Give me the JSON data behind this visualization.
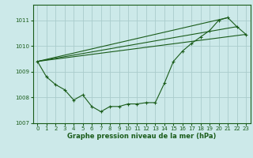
{
  "title": "Graphe pression niveau de la mer (hPa)",
  "background_color": "#cce9e9",
  "line_color": "#1a5c1a",
  "grid_color": "#aacccc",
  "xlim": [
    -0.5,
    23.5
  ],
  "ylim": [
    1007.0,
    1011.6
  ],
  "yticks": [
    1007,
    1008,
    1009,
    1010,
    1011
  ],
  "xticks": [
    0,
    1,
    2,
    3,
    4,
    5,
    6,
    7,
    8,
    9,
    10,
    11,
    12,
    13,
    14,
    15,
    16,
    17,
    18,
    19,
    20,
    21,
    22,
    23
  ],
  "hours": [
    0,
    1,
    2,
    3,
    4,
    5,
    6,
    7,
    8,
    9,
    10,
    11,
    12,
    13,
    14,
    15,
    16,
    17,
    18,
    19,
    20,
    21,
    22,
    23
  ],
  "pressure": [
    1009.4,
    1008.8,
    1008.5,
    1008.3,
    1007.9,
    1008.1,
    1007.65,
    1007.45,
    1007.65,
    1007.65,
    1007.75,
    1007.75,
    1007.8,
    1007.8,
    1008.55,
    1009.4,
    1009.8,
    1010.1,
    1010.35,
    1010.6,
    1011.0,
    1011.1,
    1010.75,
    1010.45
  ],
  "line1_x": [
    0,
    21
  ],
  "line1_y": [
    1009.4,
    1011.1
  ],
  "line2_x": [
    0,
    23
  ],
  "line2_y": [
    1009.4,
    1010.45
  ],
  "line3_x": [
    0,
    22
  ],
  "line3_y": [
    1009.4,
    1010.75
  ],
  "tick_fontsize": 5,
  "xlabel_fontsize": 6
}
